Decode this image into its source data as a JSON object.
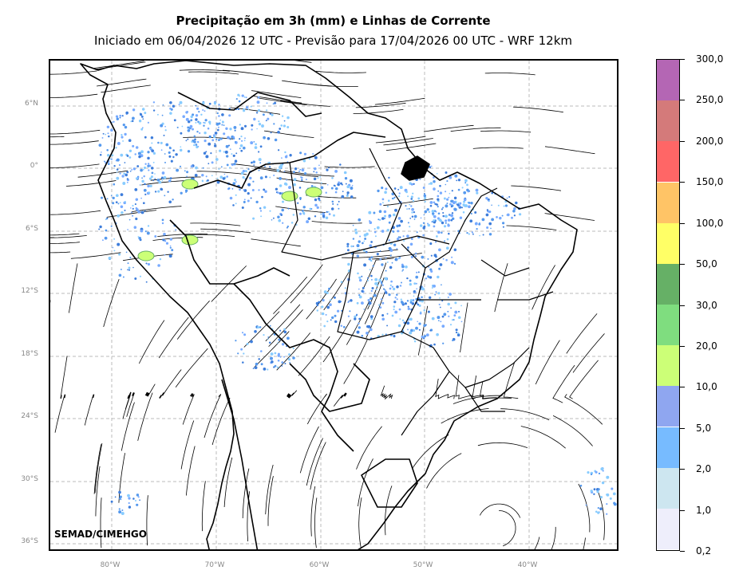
{
  "title": "Precipitação em 3h (mm) e Linhas de Corrente",
  "subtitle": "Iniciado em 06/04/2026 12 UTC - Previsão para 17/04/2026 00 UTC - WRF 12km",
  "credit": "SEMAD/CIMEHGO",
  "lat_labels": [
    "6°N",
    "0°",
    "6°S",
    "12°S",
    "18°S",
    "24°S",
    "30°S",
    "36°S"
  ],
  "lon_labels": [
    "80°W",
    "70°W",
    "60°W",
    "50°W",
    "40°W"
  ],
  "colorbar": {
    "labels": [
      "0,2",
      "1,0",
      "2,0",
      "5,0",
      "10,0",
      "20,0",
      "30,0",
      "50,0",
      "100,0",
      "150,0",
      "200,0",
      "250,0",
      "300,0"
    ],
    "colors": [
      "#eeeefb",
      "#cde6f0",
      "#77bbff",
      "#8fa6f0",
      "#ccff77",
      "#7fdd7f",
      "#66b066",
      "#ffff66",
      "#ffc466",
      "#ff6666",
      "#d47a7a",
      "#b466b4"
    ]
  }
}
